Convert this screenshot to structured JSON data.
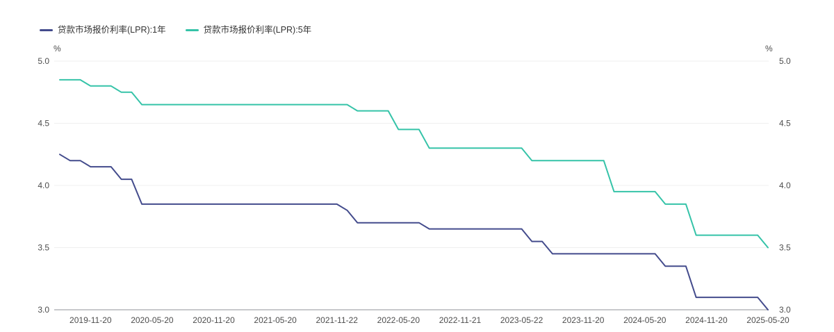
{
  "chart_data": {
    "type": "line",
    "unit": "%",
    "grid": true,
    "legend_position": "top-left",
    "ylim": [
      3.0,
      5.0
    ],
    "yticks": [
      5.0,
      4.5,
      4.0,
      3.5,
      3.0
    ],
    "x": [
      "2019-08",
      "2019-09",
      "2019-10",
      "2019-11",
      "2019-12",
      "2020-01",
      "2020-02",
      "2020-03",
      "2020-04",
      "2020-05",
      "2020-06",
      "2020-07",
      "2020-08",
      "2020-09",
      "2020-10",
      "2020-11",
      "2020-12",
      "2021-01",
      "2021-02",
      "2021-03",
      "2021-04",
      "2021-05",
      "2021-06",
      "2021-07",
      "2021-08",
      "2021-09",
      "2021-10",
      "2021-11",
      "2021-12",
      "2022-01",
      "2022-02",
      "2022-03",
      "2022-04",
      "2022-05",
      "2022-06",
      "2022-07",
      "2022-08",
      "2022-09",
      "2022-10",
      "2022-11",
      "2022-12",
      "2023-01",
      "2023-02",
      "2023-03",
      "2023-04",
      "2023-05",
      "2023-06",
      "2023-07",
      "2023-08",
      "2023-09",
      "2023-10",
      "2023-11",
      "2023-12",
      "2024-01",
      "2024-02",
      "2024-03",
      "2024-04",
      "2024-05",
      "2024-06",
      "2024-07",
      "2024-08",
      "2024-09",
      "2024-10",
      "2024-11",
      "2024-12",
      "2025-01",
      "2025-02",
      "2025-03",
      "2025-04",
      "2025-05"
    ],
    "xticks": [
      {
        "i": 3,
        "label": "2019-11-20"
      },
      {
        "i": 9,
        "label": "2020-05-20"
      },
      {
        "i": 15,
        "label": "2020-11-20"
      },
      {
        "i": 21,
        "label": "2021-05-20"
      },
      {
        "i": 27,
        "label": "2021-11-22"
      },
      {
        "i": 33,
        "label": "2022-05-20"
      },
      {
        "i": 39,
        "label": "2022-11-21"
      },
      {
        "i": 45,
        "label": "2023-05-22"
      },
      {
        "i": 51,
        "label": "2023-11-20"
      },
      {
        "i": 57,
        "label": "2024-05-20"
      },
      {
        "i": 63,
        "label": "2024-11-20"
      },
      {
        "i": 69,
        "label": "2025-05-20"
      }
    ],
    "series": [
      {
        "name": "贷款市场报价利率(LPR):1年",
        "color": "#434b8c",
        "values": [
          4.25,
          4.2,
          4.2,
          4.15,
          4.15,
          4.15,
          4.05,
          4.05,
          3.85,
          3.85,
          3.85,
          3.85,
          3.85,
          3.85,
          3.85,
          3.85,
          3.85,
          3.85,
          3.85,
          3.85,
          3.85,
          3.85,
          3.85,
          3.85,
          3.85,
          3.85,
          3.85,
          3.85,
          3.8,
          3.7,
          3.7,
          3.7,
          3.7,
          3.7,
          3.7,
          3.7,
          3.65,
          3.65,
          3.65,
          3.65,
          3.65,
          3.65,
          3.65,
          3.65,
          3.65,
          3.65,
          3.55,
          3.55,
          3.45,
          3.45,
          3.45,
          3.45,
          3.45,
          3.45,
          3.45,
          3.45,
          3.45,
          3.45,
          3.45,
          3.35,
          3.35,
          3.35,
          3.1,
          3.1,
          3.1,
          3.1,
          3.1,
          3.1,
          3.1,
          3.0
        ]
      },
      {
        "name": "贷款市场报价利率(LPR):5年",
        "color": "#35c3a8",
        "values": [
          4.85,
          4.85,
          4.85,
          4.8,
          4.8,
          4.8,
          4.75,
          4.75,
          4.65,
          4.65,
          4.65,
          4.65,
          4.65,
          4.65,
          4.65,
          4.65,
          4.65,
          4.65,
          4.65,
          4.65,
          4.65,
          4.65,
          4.65,
          4.65,
          4.65,
          4.65,
          4.65,
          4.65,
          4.65,
          4.6,
          4.6,
          4.6,
          4.6,
          4.45,
          4.45,
          4.45,
          4.3,
          4.3,
          4.3,
          4.3,
          4.3,
          4.3,
          4.3,
          4.3,
          4.3,
          4.3,
          4.2,
          4.2,
          4.2,
          4.2,
          4.2,
          4.2,
          4.2,
          4.2,
          3.95,
          3.95,
          3.95,
          3.95,
          3.95,
          3.85,
          3.85,
          3.85,
          3.6,
          3.6,
          3.6,
          3.6,
          3.6,
          3.6,
          3.6,
          3.5
        ]
      }
    ],
    "colors": {
      "grid": "#efefef",
      "axis": "#8f9398",
      "tick_text": "#4d4d4d"
    }
  }
}
